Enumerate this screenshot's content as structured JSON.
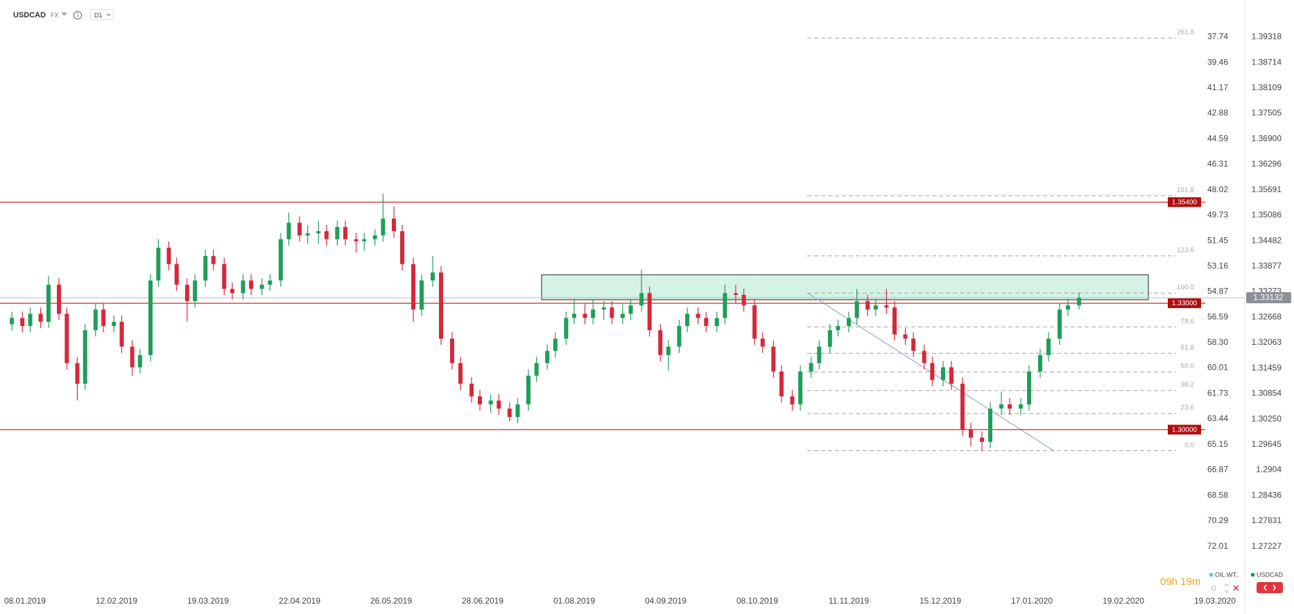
{
  "header": {
    "symbol": "USDCAD",
    "market": "FX",
    "interval": "D1"
  },
  "chart_data": {
    "type": "candlestick",
    "x": [
      "03.01.2019",
      "07.01.2019",
      "10.01.2019",
      "14.01.2019",
      "17.01.2019",
      "21.01.2019",
      "24.01.2019",
      "28.01.2019",
      "31.01.2019",
      "04.02.2019",
      "07.02.2019",
      "11.02.2019",
      "14.02.2019",
      "18.02.2019",
      "21.02.2019",
      "25.02.2019",
      "28.02.2019",
      "04.03.2019",
      "07.03.2019",
      "11.03.2019",
      "14.03.2019",
      "18.03.2019",
      "21.03.2019",
      "25.03.2019",
      "28.03.2019",
      "01.04.2019",
      "04.04.2019",
      "08.04.2019",
      "11.04.2019",
      "15.04.2019",
      "18.04.2019",
      "22.04.2019",
      "25.04.2019",
      "29.04.2019",
      "02.05.2019",
      "06.05.2019",
      "09.05.2019",
      "13.05.2019",
      "16.05.2019",
      "20.05.2019",
      "23.05.2019",
      "27.05.2019",
      "30.05.2019",
      "03.06.2019",
      "06.06.2019",
      "10.06.2019",
      "13.06.2019",
      "17.06.2019",
      "20.06.2019",
      "24.06.2019",
      "27.06.2019",
      "01.07.2019",
      "04.07.2019",
      "08.07.2019",
      "11.07.2019",
      "15.07.2019",
      "18.07.2019",
      "22.07.2019",
      "25.07.2019",
      "29.07.2019",
      "01.08.2019",
      "05.08.2019",
      "08.08.2019",
      "12.08.2019",
      "15.08.2019",
      "19.08.2019",
      "22.08.2019",
      "26.08.2019",
      "29.08.2019",
      "02.09.2019",
      "05.09.2019",
      "09.09.2019",
      "12.09.2019",
      "16.09.2019",
      "19.09.2019",
      "23.09.2019",
      "26.09.2019",
      "30.09.2019",
      "03.10.2019",
      "07.10.2019",
      "10.10.2019",
      "14.10.2019",
      "17.10.2019",
      "21.10.2019",
      "24.10.2019",
      "28.10.2019",
      "31.10.2019",
      "04.11.2019",
      "07.11.2019",
      "11.11.2019",
      "14.11.2019",
      "18.11.2019",
      "21.11.2019",
      "25.11.2019",
      "28.11.2019",
      "02.12.2019",
      "05.12.2019",
      "09.12.2019",
      "12.12.2019",
      "16.12.2019",
      "19.12.2019",
      "23.12.2019",
      "26.12.2019",
      "30.12.2019",
      "02.01.2020",
      "06.01.2020",
      "09.01.2020",
      "13.01.2020",
      "16.01.2020",
      "20.01.2020",
      "23.01.2020",
      "27.01.2020",
      "30.01.2020",
      "03.02.2020"
    ],
    "series": [
      {
        "name": "USDCAD",
        "up_color": "#1f9e5a",
        "down_color": "#d6283b",
        "open": [
          1.325,
          1.3265,
          1.3246,
          1.3275,
          1.3256,
          1.3344,
          1.3275,
          1.3158,
          1.3109,
          1.3236,
          1.3285,
          1.3246,
          1.3256,
          1.3197,
          1.3148,
          1.3177,
          1.3354,
          1.3432,
          1.3393,
          1.3344,
          1.3305,
          1.3354,
          1.3412,
          1.3393,
          1.3334,
          1.3324,
          1.3354,
          1.3334,
          1.3344,
          1.3354,
          1.3452,
          1.3491,
          1.3461,
          1.3466,
          1.3471,
          1.3452,
          1.3481,
          1.3452,
          1.3447,
          1.3452,
          1.3461,
          1.3501,
          1.3471,
          1.3393,
          1.3285,
          1.3354,
          1.3373,
          1.3216,
          1.3158,
          1.3109,
          1.3079,
          1.306,
          1.3069,
          1.305,
          1.303,
          1.306,
          1.3128,
          1.3158,
          1.3187,
          1.3216,
          1.3265,
          1.3275,
          1.3265,
          1.3285,
          1.329,
          1.3265,
          1.3275,
          1.3295,
          1.3324,
          1.3236,
          1.3177,
          1.3197,
          1.3246,
          1.3275,
          1.3265,
          1.3246,
          1.3265,
          1.3324,
          1.332,
          1.3295,
          1.3216,
          1.3197,
          1.3138,
          1.3079,
          1.306,
          1.3138,
          1.3158,
          1.3197,
          1.3236,
          1.3246,
          1.3265,
          1.3305,
          1.3285,
          1.3295,
          1.329,
          1.3226,
          1.3216,
          1.3187,
          1.3158,
          1.3118,
          1.3148,
          1.3109,
          1.3001,
          1.2981,
          1.2971,
          1.305,
          1.306,
          1.305,
          1.306,
          1.3138,
          1.3177,
          1.3216,
          1.3285,
          1.3295
        ],
        "high": [
          1.328,
          1.328,
          1.329,
          1.329,
          1.3365,
          1.3359,
          1.329,
          1.3173,
          1.3251,
          1.33,
          1.33,
          1.3271,
          1.3271,
          1.3212,
          1.3192,
          1.3369,
          1.3452,
          1.3447,
          1.3408,
          1.3359,
          1.3369,
          1.3427,
          1.3427,
          1.3408,
          1.3349,
          1.3369,
          1.3369,
          1.3359,
          1.3369,
          1.3467,
          1.3515,
          1.3506,
          1.3486,
          1.3496,
          1.3486,
          1.3496,
          1.3496,
          1.3467,
          1.3467,
          1.3476,
          1.356,
          1.353,
          1.3486,
          1.3408,
          1.3369,
          1.3412,
          1.3388,
          1.3231,
          1.3173,
          1.3124,
          1.3094,
          1.3084,
          1.3084,
          1.3065,
          1.3075,
          1.3143,
          1.3173,
          1.3202,
          1.3231,
          1.328,
          1.331,
          1.33,
          1.331,
          1.3305,
          1.3305,
          1.33,
          1.331,
          1.338,
          1.3339,
          1.3251,
          1.3212,
          1.3261,
          1.329,
          1.329,
          1.328,
          1.328,
          1.3344,
          1.3344,
          1.3335,
          1.331,
          1.3231,
          1.3212,
          1.3153,
          1.3094,
          1.3153,
          1.3173,
          1.3212,
          1.3251,
          1.3261,
          1.328,
          1.3334,
          1.332,
          1.331,
          1.3334,
          1.3305,
          1.3241,
          1.3231,
          1.3202,
          1.3173,
          1.3163,
          1.3163,
          1.3124,
          1.3016,
          1.2996,
          1.3065,
          1.309,
          1.3075,
          1.3075,
          1.3153,
          1.3192,
          1.3231,
          1.33,
          1.331,
          1.3325
        ],
        "low": [
          1.3235,
          1.3231,
          1.3231,
          1.3241,
          1.3241,
          1.326,
          1.3143,
          1.3069,
          1.3094,
          1.3221,
          1.3231,
          1.3231,
          1.3182,
          1.3128,
          1.3133,
          1.3162,
          1.3339,
          1.3378,
          1.3329,
          1.3256,
          1.329,
          1.3339,
          1.3378,
          1.3319,
          1.3309,
          1.3309,
          1.3319,
          1.3319,
          1.3329,
          1.3339,
          1.3437,
          1.3446,
          1.3441,
          1.3441,
          1.3437,
          1.3437,
          1.3437,
          1.342,
          1.3425,
          1.3437,
          1.3446,
          1.3456,
          1.3378,
          1.3256,
          1.327,
          1.3339,
          1.3201,
          1.3143,
          1.3094,
          1.3064,
          1.3045,
          1.304,
          1.3035,
          1.302,
          1.3015,
          1.3045,
          1.3113,
          1.3143,
          1.3172,
          1.3201,
          1.325,
          1.325,
          1.325,
          1.326,
          1.325,
          1.325,
          1.326,
          1.328,
          1.3221,
          1.3162,
          1.314,
          1.3182,
          1.3231,
          1.325,
          1.3231,
          1.3231,
          1.325,
          1.33,
          1.328,
          1.3201,
          1.3182,
          1.3123,
          1.3064,
          1.3045,
          1.3045,
          1.3123,
          1.3143,
          1.3182,
          1.3221,
          1.3231,
          1.325,
          1.327,
          1.327,
          1.3275,
          1.3211,
          1.3201,
          1.3172,
          1.3143,
          1.3103,
          1.3103,
          1.3094,
          1.2986,
          1.296,
          1.295,
          1.2956,
          1.3035,
          1.3035,
          1.3035,
          1.3045,
          1.3123,
          1.3162,
          1.3201,
          1.327,
          1.3285
        ],
        "close": [
          1.3265,
          1.3246,
          1.3275,
          1.3256,
          1.3344,
          1.3275,
          1.3158,
          1.3109,
          1.3236,
          1.3285,
          1.3246,
          1.3256,
          1.3197,
          1.3148,
          1.3177,
          1.3354,
          1.3432,
          1.3393,
          1.3344,
          1.3305,
          1.3354,
          1.3412,
          1.3393,
          1.3334,
          1.3324,
          1.3354,
          1.3334,
          1.3344,
          1.3354,
          1.3452,
          1.3491,
          1.3461,
          1.3466,
          1.3471,
          1.3452,
          1.3481,
          1.3452,
          1.3447,
          1.3452,
          1.3461,
          1.3501,
          1.3471,
          1.3393,
          1.3285,
          1.3354,
          1.3373,
          1.3216,
          1.3158,
          1.3109,
          1.3079,
          1.306,
          1.3069,
          1.305,
          1.303,
          1.306,
          1.3128,
          1.3158,
          1.3187,
          1.3216,
          1.3265,
          1.3275,
          1.3265,
          1.3285,
          1.329,
          1.3265,
          1.3275,
          1.3295,
          1.3324,
          1.3236,
          1.3177,
          1.3197,
          1.3246,
          1.3275,
          1.3265,
          1.3246,
          1.3265,
          1.3324,
          1.332,
          1.3295,
          1.3216,
          1.3197,
          1.3138,
          1.3079,
          1.306,
          1.3138,
          1.3158,
          1.3197,
          1.3236,
          1.3246,
          1.3265,
          1.3305,
          1.3285,
          1.3295,
          1.329,
          1.3226,
          1.3216,
          1.3187,
          1.3158,
          1.3118,
          1.3148,
          1.3109,
          1.3001,
          1.2981,
          1.2971,
          1.305,
          1.306,
          1.305,
          1.306,
          1.3138,
          1.3177,
          1.3216,
          1.3285,
          1.3295,
          1.3313
        ]
      }
    ],
    "xticks": [
      "08.01.2019",
      "12.02.2019",
      "19.03.2019",
      "22.04.2019",
      "26.05.2019",
      "28.06.2019",
      "01.08.2019",
      "04.09.2019",
      "08.10.2019",
      "11.11.2019",
      "15.12.2019",
      "17.01.2020",
      "19.02.2020",
      "19.03.2020"
    ],
    "ylim": [
      1.2625,
      1.4
    ],
    "yticks": [
      1.39318,
      1.38714,
      1.38109,
      1.37505,
      {
        "value": 1.369,
        "label": "1.36900"
      },
      1.36296,
      1.35691,
      1.35086,
      1.34482,
      1.33877,
      1.33273,
      1.32668,
      1.32063,
      1.31459,
      1.30854,
      {
        "value": 1.3025,
        "label": "1.30250"
      },
      1.29645,
      1.2904,
      1.28436,
      1.27831,
      1.27227
    ],
    "y2lim": [
      74.78,
      35.81
    ],
    "y2ticks": [
      37.74,
      39.46,
      41.17,
      42.88,
      44.59,
      46.31,
      48.02,
      49.73,
      51.45,
      53.16,
      54.87,
      56.59,
      {
        "value": 58.3,
        "label": "58.30"
      },
      60.01,
      61.73,
      63.44,
      65.15,
      66.87,
      68.58,
      70.29,
      72.01
    ],
    "levels": [
      {
        "value": 1.354,
        "label": "1.35400"
      },
      {
        "value": 1.33,
        "label": "1.33000"
      },
      {
        "value": 1.3,
        "label": "1.30000"
      }
    ],
    "level_color": "#d42a2a",
    "fibonacci": {
      "from": 1.295,
      "to": 1.3324,
      "color": "#a0a0a0",
      "levels": [
        {
          "value": 0,
          "label": "0.0"
        },
        23.6,
        38.2,
        {
          "value": 50,
          "label": "50.0"
        },
        61.8,
        78.6,
        {
          "value": 100,
          "label": "100.0"
        },
        123.6,
        161.8,
        261.8
      ]
    },
    "last_price": 1.33132,
    "legend": [
      {
        "name": "OIL.WT..",
        "color": "#5bc4ee"
      },
      {
        "name": "USDCAD",
        "color": "#1f9e5a"
      }
    ],
    "timer": "09h 19m"
  }
}
